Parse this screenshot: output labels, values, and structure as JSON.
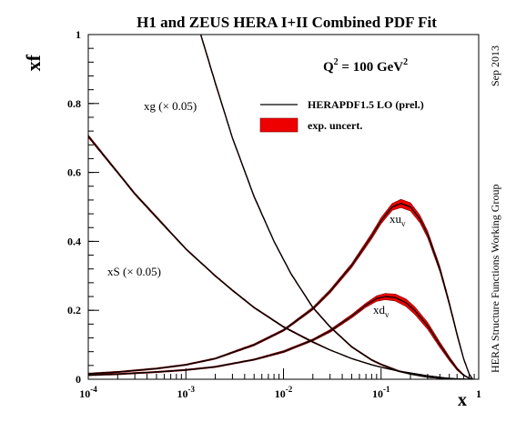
{
  "chart_data": {
    "type": "line",
    "title": "H1 and ZEUS HERA I+II Combined PDF Fit",
    "xlabel": "x",
    "ylabel": "xf",
    "x_scale": "log",
    "xlim": [
      0.0001,
      1
    ],
    "ylim": [
      0,
      1
    ],
    "x_ticks": [
      {
        "base": "10",
        "exp": "-4"
      },
      {
        "base": "10",
        "exp": "-3"
      },
      {
        "base": "10",
        "exp": "-2"
      },
      {
        "base": "10",
        "exp": "-1"
      },
      {
        "base": "1",
        "exp": ""
      }
    ],
    "y_ticks": [
      "0",
      "0.2",
      "0.4",
      "0.6",
      "0.8",
      "1"
    ],
    "annotation": {
      "prefix": "Q",
      "sup": "2",
      "suffix": " = 100 GeV",
      "sup2": "2"
    },
    "side_text_top": "Sep 2013",
    "side_text_bottom": "HERA Structure Functions Working Group",
    "legend": {
      "position": "top-right",
      "entries": [
        {
          "label": "HERAPDF1.5 LO (prel.)",
          "style": "line",
          "color": "#000000"
        },
        {
          "label": "exp. uncert.",
          "style": "band",
          "color": "#ee0000"
        }
      ]
    },
    "colors": {
      "curve": "#000000",
      "band": "#ee0000",
      "band_edge": "#7a0000"
    },
    "series": [
      {
        "label_main": "xg",
        "label_note": " (× 0.05)",
        "label_sub": "",
        "x": [
          0.00142,
          0.002,
          0.003,
          0.005,
          0.008,
          0.012,
          0.02,
          0.03,
          0.05,
          0.08,
          0.1,
          0.15,
          0.2,
          0.3,
          0.45,
          0.6,
          0.8
        ],
        "y": [
          1.0,
          0.86,
          0.7,
          0.53,
          0.4,
          0.305,
          0.208,
          0.152,
          0.094,
          0.056,
          0.043,
          0.024,
          0.015,
          0.006,
          0.002,
          0.0005,
          0.0
        ],
        "band": [
          0.004,
          0.004,
          0.003,
          0.003,
          0.002,
          0.002,
          0.002,
          0.002,
          0.002,
          0.002,
          0.002,
          0.002,
          0.001,
          0.001,
          0.001,
          0.0,
          0.0
        ]
      },
      {
        "label_main": "xS",
        "label_note": " (× 0.05)",
        "label_sub": "",
        "x": [
          0.0001,
          0.0002,
          0.0003,
          0.0005,
          0.001,
          0.002,
          0.003,
          0.005,
          0.01,
          0.02,
          0.03,
          0.05,
          0.08,
          0.1,
          0.15,
          0.2,
          0.3,
          0.45,
          0.6,
          0.8
        ],
        "y": [
          0.705,
          0.6,
          0.538,
          0.47,
          0.378,
          0.3,
          0.258,
          0.208,
          0.152,
          0.108,
          0.085,
          0.06,
          0.042,
          0.035,
          0.024,
          0.018,
          0.01,
          0.004,
          0.001,
          0.0
        ],
        "band": [
          0.004,
          0.003,
          0.003,
          0.003,
          0.002,
          0.002,
          0.002,
          0.002,
          0.002,
          0.002,
          0.001,
          0.001,
          0.001,
          0.001,
          0.001,
          0.001,
          0.001,
          0.0,
          0.0,
          0.0
        ]
      },
      {
        "label_main": "xu",
        "label_note": "",
        "label_sub": "v",
        "x": [
          0.0001,
          0.0002,
          0.0005,
          0.001,
          0.002,
          0.005,
          0.01,
          0.02,
          0.03,
          0.05,
          0.08,
          0.1,
          0.13,
          0.16,
          0.2,
          0.25,
          0.3,
          0.4,
          0.5,
          0.6,
          0.7,
          0.8,
          0.87
        ],
        "y": [
          0.016,
          0.021,
          0.031,
          0.042,
          0.06,
          0.1,
          0.142,
          0.205,
          0.255,
          0.33,
          0.415,
          0.46,
          0.5,
          0.51,
          0.5,
          0.465,
          0.42,
          0.32,
          0.22,
          0.13,
          0.06,
          0.015,
          0.0
        ],
        "band": [
          0.002,
          0.002,
          0.002,
          0.002,
          0.002,
          0.003,
          0.003,
          0.004,
          0.005,
          0.006,
          0.008,
          0.009,
          0.01,
          0.012,
          0.012,
          0.011,
          0.01,
          0.008,
          0.006,
          0.005,
          0.003,
          0.002,
          0.0
        ]
      },
      {
        "label_main": "xd",
        "label_note": "",
        "label_sub": "v",
        "x": [
          0.0001,
          0.0002,
          0.0005,
          0.001,
          0.002,
          0.005,
          0.01,
          0.02,
          0.03,
          0.05,
          0.07,
          0.09,
          0.11,
          0.14,
          0.18,
          0.22,
          0.3,
          0.4,
          0.5,
          0.6,
          0.7,
          0.8,
          0.87
        ],
        "y": [
          0.012,
          0.015,
          0.021,
          0.027,
          0.036,
          0.057,
          0.08,
          0.114,
          0.14,
          0.183,
          0.215,
          0.234,
          0.24,
          0.237,
          0.222,
          0.2,
          0.155,
          0.1,
          0.06,
          0.03,
          0.012,
          0.003,
          0.0
        ],
        "band": [
          0.002,
          0.002,
          0.002,
          0.002,
          0.002,
          0.002,
          0.003,
          0.003,
          0.004,
          0.005,
          0.006,
          0.008,
          0.009,
          0.01,
          0.011,
          0.011,
          0.01,
          0.008,
          0.006,
          0.004,
          0.002,
          0.001,
          0.0
        ]
      }
    ]
  }
}
